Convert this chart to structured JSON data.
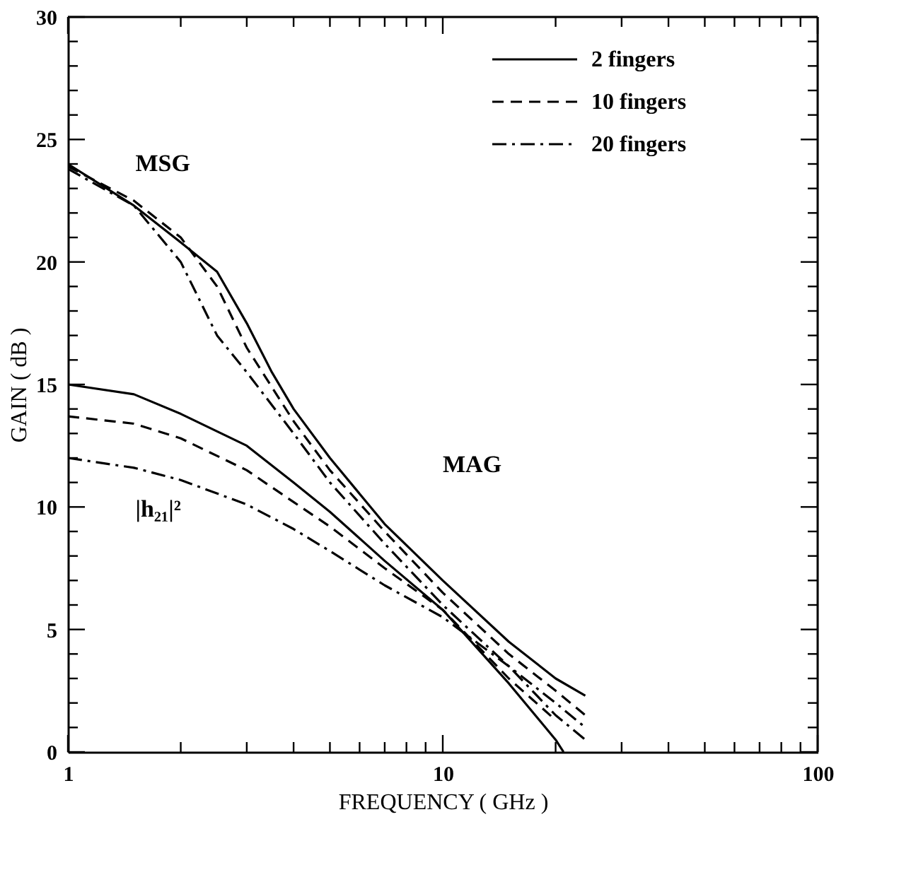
{
  "chart_data": {
    "type": "line",
    "xlabel": "FREQUENCY ( GHz )",
    "ylabel": "GAIN ( dB )",
    "log": "x",
    "xlim": [
      1,
      100
    ],
    "ylim": [
      0,
      30
    ],
    "xticks": [
      1,
      {
        "value": 2,
        "label": null
      },
      {
        "value": 3,
        "label": null
      },
      {
        "value": 4,
        "label": null
      },
      {
        "value": 5,
        "label": null
      },
      {
        "value": 6,
        "label": null
      },
      {
        "value": 7,
        "label": null
      },
      {
        "value": 8,
        "label": null
      },
      {
        "value": 9,
        "label": null
      },
      10,
      {
        "value": 20,
        "label": null
      },
      {
        "value": 30,
        "label": null
      },
      {
        "value": 40,
        "label": null
      },
      {
        "value": 50,
        "label": null
      },
      {
        "value": 60,
        "label": null
      },
      {
        "value": 70,
        "label": null
      },
      {
        "value": 80,
        "label": null
      },
      {
        "value": 90,
        "label": null
      },
      100
    ],
    "yticks": [
      0,
      {
        "value": 1,
        "label": null
      },
      {
        "value": 2,
        "label": null
      },
      {
        "value": 3,
        "label": null
      },
      {
        "value": 4,
        "label": null
      },
      5,
      {
        "value": 6,
        "label": null
      },
      {
        "value": 7,
        "label": null
      },
      {
        "value": 8,
        "label": null
      },
      {
        "value": 9,
        "label": null
      },
      10,
      {
        "value": 11,
        "label": null
      },
      {
        "value": 12,
        "label": null
      },
      {
        "value": 13,
        "label": null
      },
      {
        "value": 14,
        "label": null
      },
      15,
      {
        "value": 16,
        "label": null
      },
      {
        "value": 17,
        "label": null
      },
      {
        "value": 18,
        "label": null
      },
      {
        "value": 19,
        "label": null
      },
      20,
      {
        "value": 21,
        "label": null
      },
      {
        "value": 22,
        "label": null
      },
      {
        "value": 23,
        "label": null
      },
      {
        "value": 24,
        "label": null
      },
      25,
      {
        "value": 26,
        "label": null
      },
      {
        "value": 27,
        "label": null
      },
      {
        "value": 28,
        "label": null
      },
      {
        "value": 29,
        "label": null
      },
      30
    ],
    "grid": false,
    "legend": "top right",
    "marker": "none",
    "series": [
      {
        "name": "2 fingers",
        "color": "#000000",
        "line_style": "solid",
        "x": [
          1,
          1.5,
          2,
          2.5,
          3,
          3.5,
          4,
          5,
          7,
          10,
          15,
          20,
          24
        ],
        "values": [
          24,
          22.3,
          20.8,
          19.6,
          17.5,
          15.5,
          14,
          12,
          9.3,
          7,
          4.5,
          3,
          2.3
        ]
      },
      {
        "name": "10 fingers",
        "color": "#000000",
        "line_style": "dashed",
        "x": [
          1,
          1.5,
          2,
          2.5,
          3,
          4,
          5,
          7,
          10,
          15,
          20,
          24
        ],
        "values": [
          23.9,
          22.5,
          21,
          19,
          16.5,
          13.5,
          11.5,
          9,
          6.5,
          4,
          2.5,
          1.5
        ]
      },
      {
        "name": "20 fingers",
        "color": "#000000",
        "line_style": "dashdot",
        "x": [
          1,
          1.5,
          2,
          2.5,
          3,
          4,
          5,
          7,
          10,
          15,
          20,
          24
        ],
        "values": [
          23.8,
          22.3,
          20,
          17,
          15.5,
          13,
          11,
          8.5,
          6,
          3.5,
          1.5,
          0.5
        ]
      },
      {
        "color": "#000000",
        "line_style": "solid",
        "x": [
          1,
          1.5,
          2,
          3,
          4,
          5,
          7,
          10,
          15,
          20,
          21
        ],
        "values": [
          15,
          14.6,
          13.8,
          12.5,
          11,
          9.8,
          7.8,
          5.8,
          2.8,
          0.5,
          0
        ]
      },
      {
        "color": "#000000",
        "line_style": "dashed",
        "x": [
          1,
          1.5,
          2,
          3,
          4,
          5,
          7,
          10,
          15,
          20
        ],
        "values": [
          13.7,
          13.4,
          12.8,
          11.5,
          10.2,
          9.2,
          7.5,
          5.8,
          3,
          1.3
        ]
      },
      {
        "color": "#000000",
        "line_style": "dashdot",
        "x": [
          1,
          1.5,
          2,
          3,
          4,
          5,
          7,
          10,
          15,
          20,
          24
        ],
        "values": [
          12,
          11.6,
          11.1,
          10.1,
          9.1,
          8.2,
          6.8,
          5.5,
          3.5,
          2,
          1
        ]
      }
    ],
    "annotations": [
      "MSG",
      "MAG",
      "|h₂₁|²"
    ]
  }
}
